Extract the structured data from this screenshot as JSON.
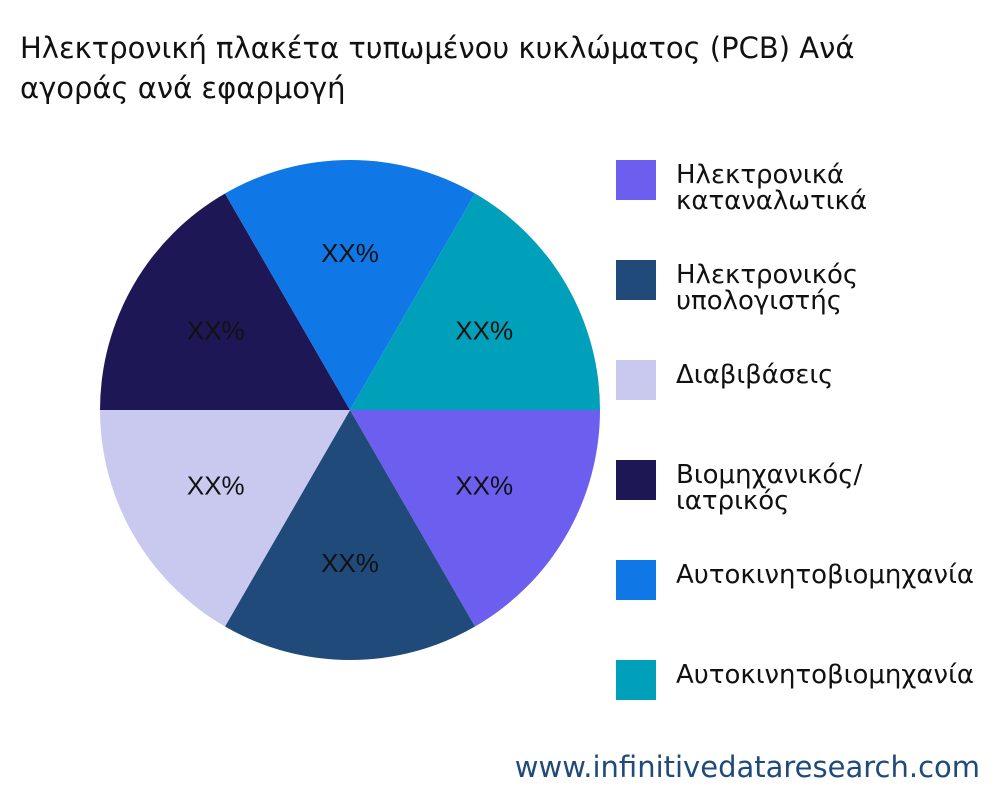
{
  "chart_data": {
    "type": "pie",
    "title": [
      "Ηλεκτρονική πλακέτα τυπωμένου κυκλώματος (PCB) Ανά",
      "αγοράς ανά εφαρμογή"
    ],
    "categories": [
      "Ηλεκτρονικά καταναλωτικά",
      "Ηλεκτρονικός υπολογιστής",
      "Διαβιβάσεις",
      "Βιομηχανικός/ιατρικός",
      "Αυτοκινητοβιομηχανία",
      "Αυτοκινητοβιομηχανία"
    ],
    "values": [
      16.67,
      16.67,
      16.67,
      16.67,
      16.67,
      16.67
    ],
    "value_labels": [
      "XX%",
      "XX%",
      "XX%",
      "XX%",
      "XX%",
      "XX%"
    ],
    "colors": [
      "#6c5ff0",
      "#1f4a7a",
      "#c9c9f0",
      "#1e1756",
      "#0f78e6",
      "#009fba"
    ],
    "legend": "right",
    "watermark": "www.infinitivedataresearch.com"
  }
}
